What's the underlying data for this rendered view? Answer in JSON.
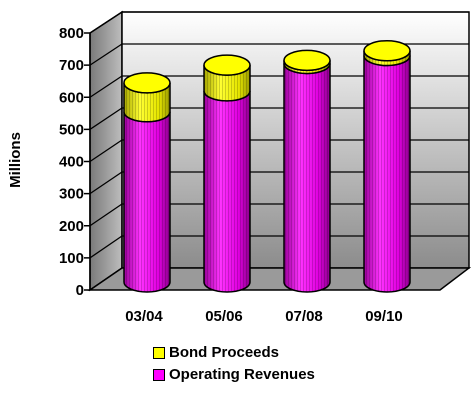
{
  "chart_data": {
    "type": "bar",
    "stacked": true,
    "three_d": true,
    "categories": [
      "03/04",
      "05/06",
      "07/08",
      "09/10"
    ],
    "series": [
      {
        "name": "Operating Revenues",
        "values": [
          530,
          595,
          680,
          705
        ],
        "color": "#ff00ff"
      },
      {
        "name": "Bond Proceeds",
        "values": [
          90,
          80,
          10,
          15
        ],
        "color": "#ffff00"
      }
    ],
    "ylabel": "Millions",
    "ylim": [
      0,
      800
    ],
    "yticks": [
      "0",
      "100",
      "200",
      "300",
      "400",
      "500",
      "600",
      "700",
      "800"
    ],
    "legend_position": "bottom",
    "grid": true
  }
}
